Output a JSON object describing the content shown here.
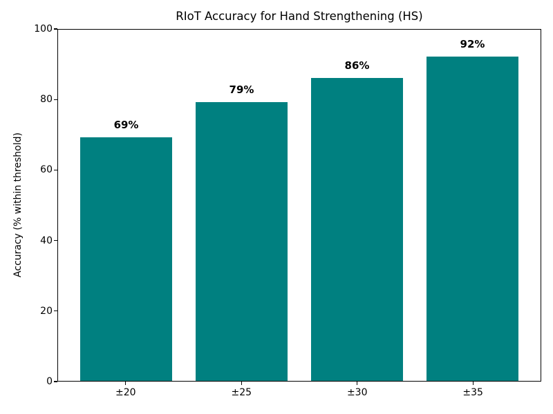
{
  "chart_data": {
    "type": "bar",
    "title": "RIoT Accuracy for Hand Strengthening (HS)",
    "categories": [
      "±20",
      "±25",
      "±30",
      "±35"
    ],
    "values": [
      69,
      79,
      86,
      92
    ],
    "bar_labels": [
      "69%",
      "79%",
      "86%",
      "92%"
    ],
    "xlabel": "",
    "ylabel": "Accuracy (% within threshold)",
    "ylim": [
      0,
      100
    ],
    "yticks": [
      0,
      20,
      40,
      60,
      80,
      100
    ],
    "bar_color": "#008080",
    "axis_color": "#000000",
    "background_color": "#ffffff",
    "grid": false,
    "legend": "none"
  }
}
